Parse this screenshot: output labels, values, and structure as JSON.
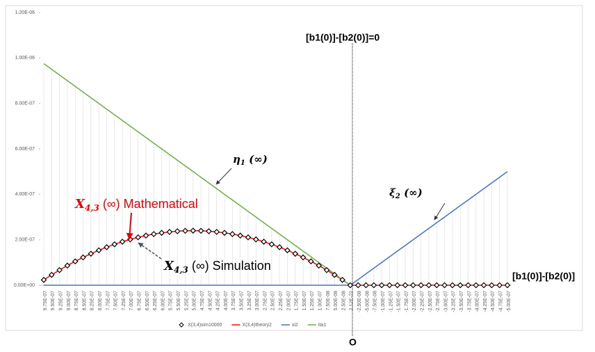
{
  "chart_data": {
    "type": "line",
    "categories": [
      "9.75E-07",
      "9.50E-07",
      "9.25E-07",
      "9.00E-07",
      "8.75E-07",
      "8.50E-07",
      "8.25E-07",
      "8.00E-07",
      "7.75E-07",
      "7.50E-07",
      "7.25E-07",
      "7.00E-07",
      "6.75E-07",
      "6.50E-07",
      "6.25E-07",
      "6.00E-07",
      "5.75E-07",
      "5.50E-07",
      "5.25E-07",
      "5.00E-07",
      "4.75E-07",
      "4.50E-07",
      "4.25E-07",
      "4.00E-07",
      "3.75E-07",
      "3.50E-07",
      "3.25E-07",
      "3.00E-07",
      "2.75E-07",
      "2.50E-07",
      "2.25E-07",
      "2.00E-07",
      "1.75E-07",
      "1.50E-07",
      "1.25E-07",
      "1.00E-07",
      "7.50E-08",
      "5.00E-08",
      "2.50E-08",
      "2.12E-22",
      "-2.50E-08",
      "-5.00E-08",
      "-7.50E-08",
      "-1.00E-07",
      "-1.25E-07",
      "-1.50E-07",
      "-1.75E-07",
      "-2.00E-07",
      "-2.25E-07",
      "-2.50E-07",
      "-2.75E-07",
      "-3.00E-07",
      "-3.25E-07",
      "-3.50E-07",
      "-3.75E-07",
      "-4.00E-07",
      "-4.25E-07",
      "-4.50E-07",
      "-4.75E-07",
      "-5.00E-07"
    ],
    "series": [
      {
        "name": "X(3,4)sim10000",
        "color": "#000000",
        "style": "markers",
        "values": [
          2.34e-08,
          4.56e-08,
          6.66e-08,
          8.64e-08,
          1.05e-07,
          1.224e-07,
          1.386e-07,
          1.536e-07,
          1.674e-07,
          1.8e-07,
          1.914e-07,
          2.016e-07,
          2.106e-07,
          2.184e-07,
          2.25e-07,
          2.304e-07,
          2.346e-07,
          2.376e-07,
          2.394e-07,
          2.4e-07,
          2.394e-07,
          2.376e-07,
          2.346e-07,
          2.304e-07,
          2.25e-07,
          2.184e-07,
          2.106e-07,
          2.016e-07,
          1.914e-07,
          1.8e-07,
          1.674e-07,
          1.536e-07,
          1.386e-07,
          1.224e-07,
          1.05e-07,
          8.64e-08,
          6.66e-08,
          4.56e-08,
          2.34e-08,
          0,
          0,
          0,
          0,
          0,
          0,
          0,
          0,
          0,
          0,
          0,
          0,
          0,
          0,
          0,
          0,
          0,
          0,
          0,
          0,
          0
        ]
      },
      {
        "name": "X(3,4)theory2",
        "color": "#ff0000",
        "style": "line",
        "values": [
          2.34e-08,
          4.56e-08,
          6.66e-08,
          8.64e-08,
          1.05e-07,
          1.224e-07,
          1.386e-07,
          1.536e-07,
          1.674e-07,
          1.8e-07,
          1.914e-07,
          2.016e-07,
          2.106e-07,
          2.184e-07,
          2.25e-07,
          2.304e-07,
          2.346e-07,
          2.376e-07,
          2.394e-07,
          2.4e-07,
          2.394e-07,
          2.376e-07,
          2.346e-07,
          2.304e-07,
          2.25e-07,
          2.184e-07,
          2.106e-07,
          2.016e-07,
          1.914e-07,
          1.8e-07,
          1.674e-07,
          1.536e-07,
          1.386e-07,
          1.224e-07,
          1.05e-07,
          8.64e-08,
          6.66e-08,
          4.56e-08,
          2.34e-08,
          0,
          0,
          0,
          0,
          0,
          0,
          0,
          0,
          0,
          0,
          0,
          0,
          0,
          0,
          0,
          0,
          0,
          0,
          0,
          0,
          0
        ]
      },
      {
        "name": "xi2",
        "color": "#4472c4",
        "style": "line",
        "values": [
          0,
          0,
          0,
          0,
          0,
          0,
          0,
          0,
          0,
          0,
          0,
          0,
          0,
          0,
          0,
          0,
          0,
          0,
          0,
          0,
          0,
          0,
          0,
          0,
          0,
          0,
          0,
          0,
          0,
          0,
          0,
          0,
          0,
          0,
          0,
          0,
          0,
          0,
          0,
          0,
          2.5e-08,
          5e-08,
          7.5e-08,
          1e-07,
          1.25e-07,
          1.5e-07,
          1.75e-07,
          2e-07,
          2.25e-07,
          2.5e-07,
          2.75e-07,
          3e-07,
          3.25e-07,
          3.5e-07,
          3.75e-07,
          4e-07,
          4.25e-07,
          4.5e-07,
          4.75e-07,
          5e-07
        ]
      },
      {
        "name": "ita1",
        "color": "#70ad47",
        "style": "line",
        "values": [
          9.75e-07,
          9.5e-07,
          9.25e-07,
          9e-07,
          8.75e-07,
          8.5e-07,
          8.25e-07,
          8e-07,
          7.75e-07,
          7.5e-07,
          7.25e-07,
          7e-07,
          6.75e-07,
          6.5e-07,
          6.25e-07,
          6e-07,
          5.75e-07,
          5.5e-07,
          5.25e-07,
          5e-07,
          4.75e-07,
          4.5e-07,
          4.25e-07,
          4e-07,
          3.75e-07,
          3.5e-07,
          3.25e-07,
          3e-07,
          2.75e-07,
          2.5e-07,
          2.25e-07,
          2e-07,
          1.75e-07,
          1.5e-07,
          1.25e-07,
          1e-07,
          7.5e-08,
          5e-08,
          2.5e-08,
          0,
          null,
          null,
          null,
          null,
          null,
          null,
          null,
          null,
          null,
          null,
          null,
          null,
          null,
          null,
          null,
          null,
          null,
          null,
          null,
          null
        ]
      }
    ],
    "ylim": [
      0,
      1.2e-06
    ],
    "yticks": [
      {
        "value": 0,
        "label": "0.00E+00"
      },
      {
        "value": 2e-07,
        "label": "2.00E-07"
      },
      {
        "value": 4e-07,
        "label": "4.00E-07"
      },
      {
        "value": 6e-07,
        "label": "6.00E-07"
      },
      {
        "value": 8e-07,
        "label": "8.00E-07"
      },
      {
        "value": 1e-06,
        "label": "1.00E-06"
      },
      {
        "value": 1.2e-06,
        "label": "1.20E-06"
      }
    ],
    "legend": "bottom",
    "annotations": {
      "zero_line": "[b1(0)]-[b2(0)]=0",
      "axis_label": "[b1(0)]-[b2(0)]",
      "origin": "O",
      "eta": {
        "base": "η",
        "sub": "1",
        "rest": " (∞)"
      },
      "xi": {
        "base": "ξ",
        "sub": "2",
        "rest": " (∞)"
      },
      "math": {
        "base": "X",
        "sub": "4,3",
        "rest": " (∞) Mathematical"
      },
      "sim": {
        "base": "X",
        "sub": "4,3",
        "rest": " (∞) Simulation"
      }
    }
  }
}
